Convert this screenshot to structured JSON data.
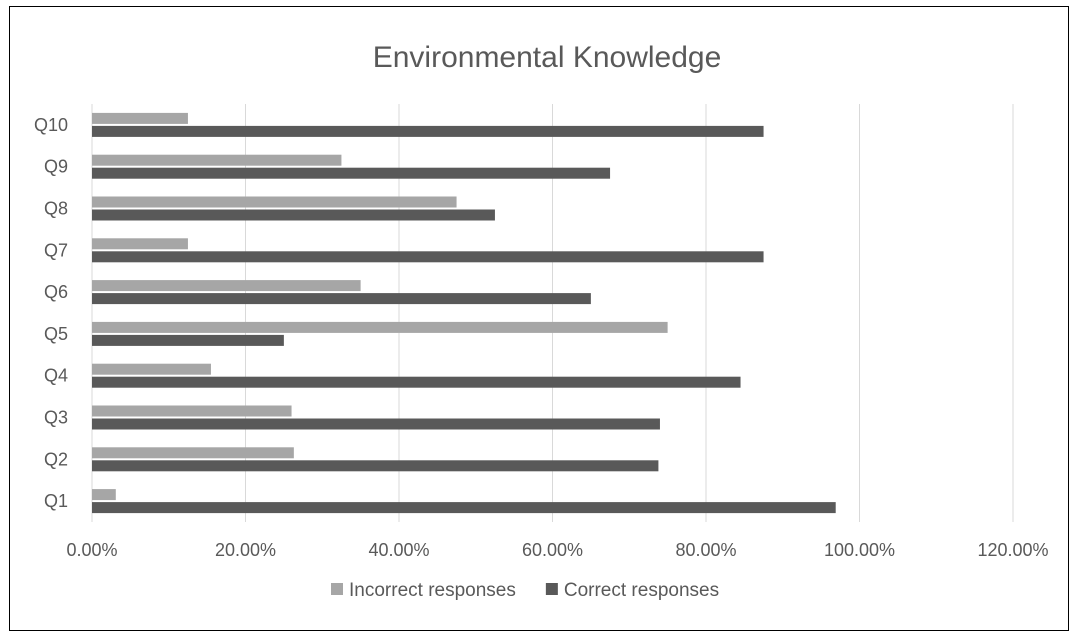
{
  "chart_data": {
    "type": "bar",
    "orientation": "horizontal",
    "title": "Environmental Knowledge",
    "categories": [
      "Q1",
      "Q2",
      "Q3",
      "Q4",
      "Q5",
      "Q6",
      "Q7",
      "Q8",
      "Q9",
      "Q10"
    ],
    "series": [
      {
        "name": "Incorrect responses",
        "color": "#a6a6a6",
        "values": [
          3.1,
          26.3,
          26.0,
          15.5,
          75.0,
          35.0,
          12.5,
          47.5,
          32.5,
          12.5
        ]
      },
      {
        "name": "Correct responses",
        "color": "#595959",
        "values": [
          96.9,
          73.8,
          74.0,
          84.5,
          25.0,
          65.0,
          87.5,
          52.5,
          67.5,
          87.5
        ]
      }
    ],
    "x_ticks": [
      "0.00%",
      "20.00%",
      "40.00%",
      "60.00%",
      "80.00%",
      "100.00%",
      "120.00%"
    ],
    "xlim": [
      0,
      120
    ],
    "grid": true,
    "legend_position": "bottom"
  }
}
